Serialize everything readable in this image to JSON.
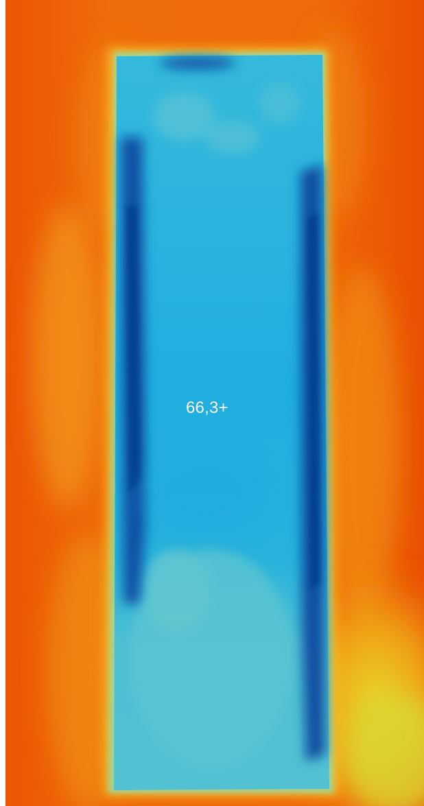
{
  "temperature_readout": "66,3+",
  "palette": {
    "hot_background": "#ee5a06",
    "warm_orange": "#f38a12",
    "yellow": "#e9d11f",
    "object_cyan": "#23b0dc",
    "object_light": "#52c0d6",
    "cold_edge": "#0a4fa3"
  }
}
